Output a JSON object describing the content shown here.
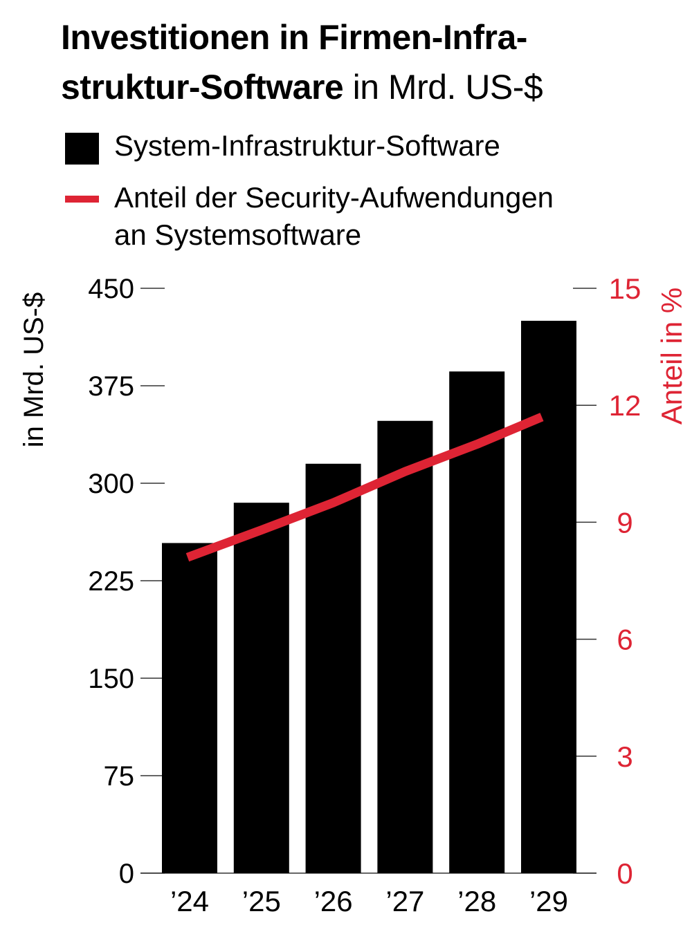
{
  "title": {
    "bold": "Investitionen in Firmen-Infra-struktur-Software",
    "bold_line1": "Investitionen in Firmen-Infra-",
    "bold_line2": "struktur-Software",
    "regular": " in Mrd. US-$"
  },
  "legend": [
    {
      "label": "System-Infrastruktur-Software",
      "color": "#000000"
    },
    {
      "label_line1": "Anteil der Security-Aufwendungen",
      "label_line2": "an Systemsoftware",
      "color": "#de2434"
    }
  ],
  "chart_data": {
    "type": "bar+line",
    "categories": [
      "’24",
      "’25",
      "’26",
      "’27",
      "’28",
      "’29"
    ],
    "series": [
      {
        "name": "System-Infrastruktur-Software",
        "type": "bar",
        "axis": "left",
        "color": "#000000",
        "values": [
          254,
          285,
          315,
          348,
          386,
          425
        ]
      },
      {
        "name": "Anteil der Security-Aufwendungen an Systemsoftware",
        "type": "line",
        "axis": "right",
        "color": "#de2434",
        "values": [
          8.1,
          8.8,
          9.5,
          10.3,
          11.0,
          11.7
        ]
      }
    ],
    "ylabel": "in Mrd. US-$",
    "ylim": [
      0,
      450
    ],
    "yticks": [
      0,
      75,
      150,
      225,
      300,
      375,
      450
    ],
    "y2label": "Anteil in %",
    "y2lim": [
      0,
      15
    ],
    "y2ticks": [
      0,
      3,
      6,
      9,
      12,
      15
    ],
    "grid": false,
    "legend_position": "top"
  }
}
